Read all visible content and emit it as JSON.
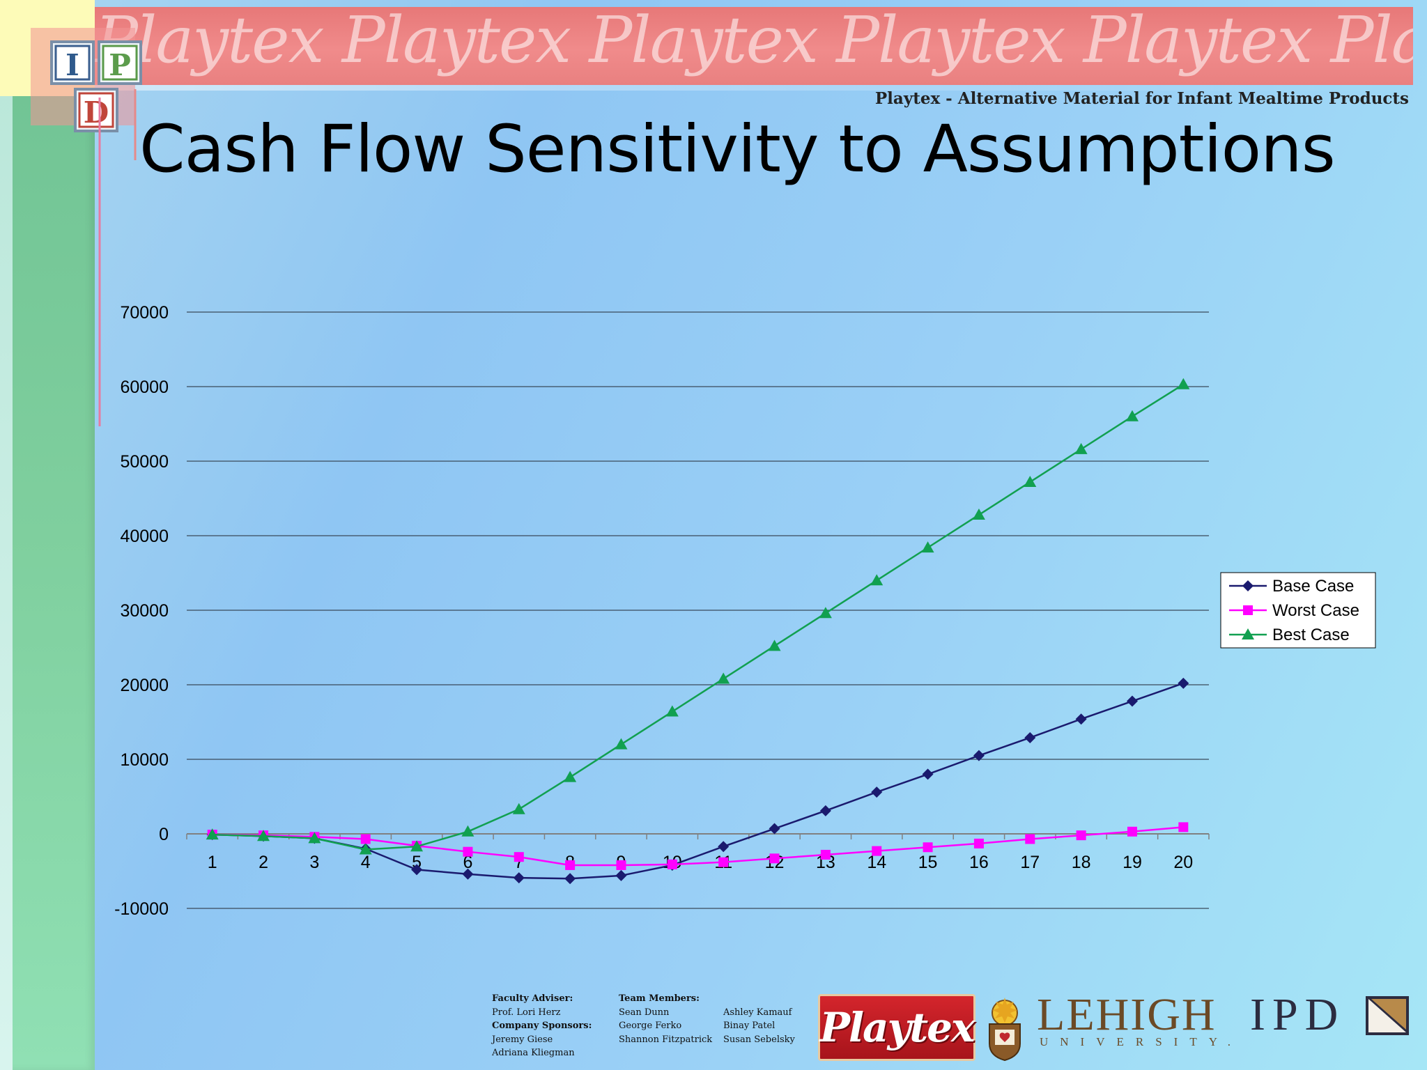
{
  "header": {
    "banner_text": "Playtex Playtex Playtex Playtex Playtex Playtex Playtex",
    "subtitle": "Playtex - Alternative Material for Infant Mealtime Products"
  },
  "logo": {
    "letters": [
      "I",
      "P",
      "D"
    ]
  },
  "title": "Cash Flow Sensitivity to Assumptions",
  "chart_data": {
    "type": "line",
    "title": "",
    "xlabel": "",
    "ylabel": "",
    "x": [
      1,
      2,
      3,
      4,
      5,
      6,
      7,
      8,
      9,
      10,
      11,
      12,
      13,
      14,
      15,
      16,
      17,
      18,
      19,
      20
    ],
    "ylim": [
      -10000,
      70000
    ],
    "yticks": [
      -10000,
      0,
      10000,
      20000,
      30000,
      40000,
      50000,
      60000,
      70000
    ],
    "grid": "horizontal",
    "legend": "right",
    "series": [
      {
        "name": "Base Case",
        "color": "#1a1a6e",
        "marker": "diamond",
        "values": [
          -100,
          -300,
          -600,
          -2000,
          -4800,
          -5400,
          -5900,
          -6000,
          -5600,
          -4200,
          -1700,
          700,
          3100,
          5600,
          8000,
          10500,
          12900,
          15400,
          17800,
          20200
        ]
      },
      {
        "name": "Worst Case",
        "color": "#ff00ff",
        "marker": "square",
        "values": [
          -100,
          -200,
          -400,
          -700,
          -1600,
          -2400,
          -3100,
          -4200,
          -4200,
          -4100,
          -3800,
          -3300,
          -2800,
          -2300,
          -1800,
          -1300,
          -700,
          -200,
          300,
          900
        ]
      },
      {
        "name": "Best Case",
        "color": "#11a050",
        "marker": "triangle",
        "values": [
          -100,
          -300,
          -600,
          -2100,
          -1700,
          300,
          3300,
          7600,
          12000,
          16400,
          20800,
          25200,
          29600,
          34000,
          38400,
          42800,
          47200,
          51600,
          56000,
          60300
        ]
      }
    ]
  },
  "footer": {
    "faculty_adviser_label": "Faculty Adviser:",
    "faculty_adviser": "Prof. Lori Herz",
    "sponsors_label": "Company Sponsors:",
    "sponsors": [
      "Jeremy Giese",
      "Adriana Kliegman"
    ],
    "team_label": "Team Members:",
    "team_col1": [
      "Sean Dunn",
      "George Ferko",
      "Shannon Fitzpatrick"
    ],
    "team_col2": [
      "Ashley Kamauf",
      "Binay Patel",
      "Susan Sebelsky"
    ],
    "playtex_logo": "Playtex",
    "lehigh_name": "LEHIGH",
    "lehigh_sub": "UNIVERSITY.",
    "ipd_logo": "IPD"
  }
}
